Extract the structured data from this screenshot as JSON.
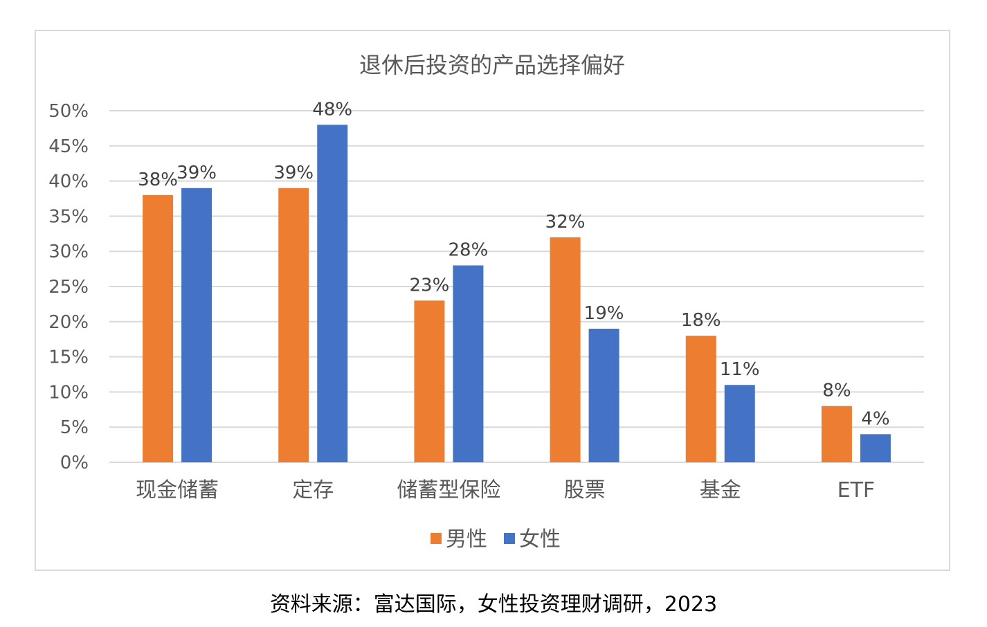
{
  "chart_data": {
    "type": "bar",
    "title": "退休后投资的产品选择偏好",
    "categories": [
      "现金储蓄",
      "定存",
      "储蓄型保险",
      "股票",
      "基金",
      "ETF"
    ],
    "series": [
      {
        "name": "男性",
        "color": "#ED7D31",
        "values": [
          38,
          39,
          23,
          32,
          18,
          8
        ],
        "labels": [
          "38%",
          "39%",
          "23%",
          "32%",
          "18%",
          "8%"
        ]
      },
      {
        "name": "女性",
        "color": "#4472C4",
        "values": [
          39,
          48,
          28,
          19,
          11,
          4
        ],
        "labels": [
          "39%",
          "48%",
          "28%",
          "19%",
          "11%",
          "4%"
        ]
      }
    ],
    "ylim": [
      0,
      50
    ],
    "yticks": [
      0,
      5,
      10,
      15,
      20,
      25,
      30,
      35,
      40,
      45,
      50
    ],
    "ytick_labels": [
      "0%",
      "5%",
      "10%",
      "15%",
      "20%",
      "25%",
      "30%",
      "35%",
      "40%",
      "45%",
      "50%"
    ],
    "xlabel": "",
    "ylabel": "",
    "grid": true,
    "legend": "bottom-center"
  },
  "source": {
    "text": "资料来源：富达国际，女性投资理财调研，2023"
  }
}
